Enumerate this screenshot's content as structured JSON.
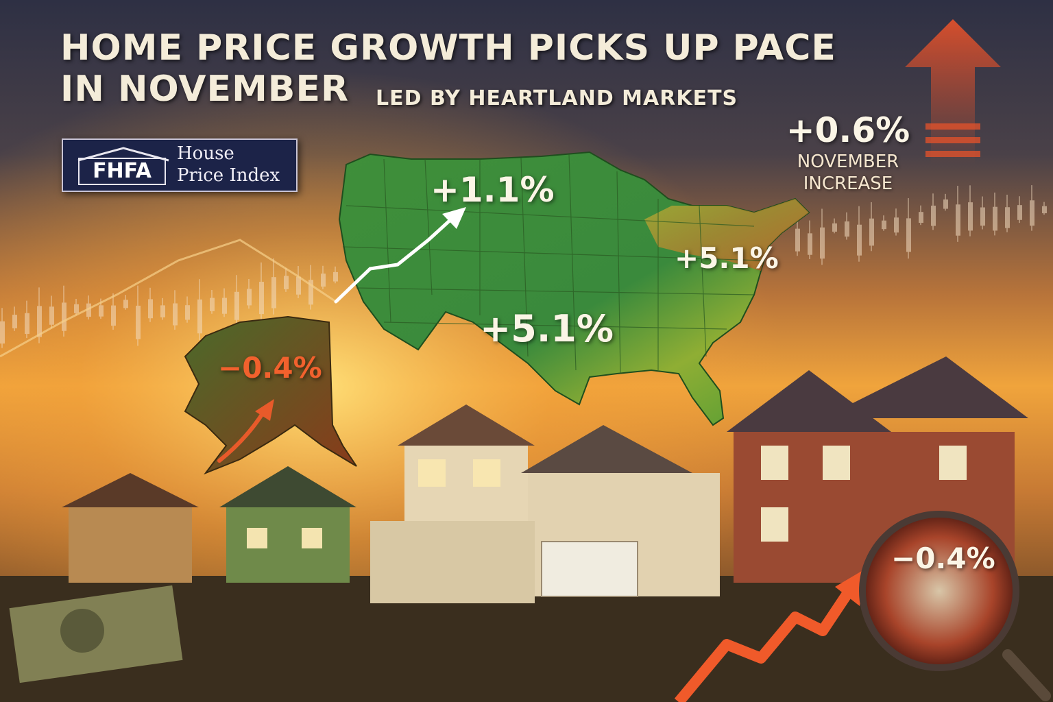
{
  "headline": {
    "line1": "HOME PRICE GROWTH PICKS UP PACE",
    "line2": "IN NOVEMBER",
    "subtitle": "LED BY HEARTLAND MARKETS"
  },
  "badge": {
    "acronym": "FHFA",
    "name_line1": "House",
    "name_line2": "Price Index"
  },
  "map_labels": {
    "north": "+1.1%",
    "south": "+5.1%",
    "east": "+5.1%",
    "alaska": "−0.4%"
  },
  "callout": {
    "value": "+0.6%",
    "label_line1": "NOVEMBER",
    "label_line2": "INCREASE"
  },
  "magnifier": {
    "value": "−0.4%"
  },
  "icons": {
    "up_arrow": "arrow-up-icon",
    "trend_arrow": "trend-arrow-icon",
    "magnifier": "magnifying-glass-icon",
    "roof": "house-roof-icon"
  },
  "colors": {
    "sky_top": "#2e3044",
    "sunset": "#f0a43c",
    "map_green": "#4a9a3a",
    "accent_orange": "#f2612d",
    "badge_navy": "#1c2348"
  }
}
